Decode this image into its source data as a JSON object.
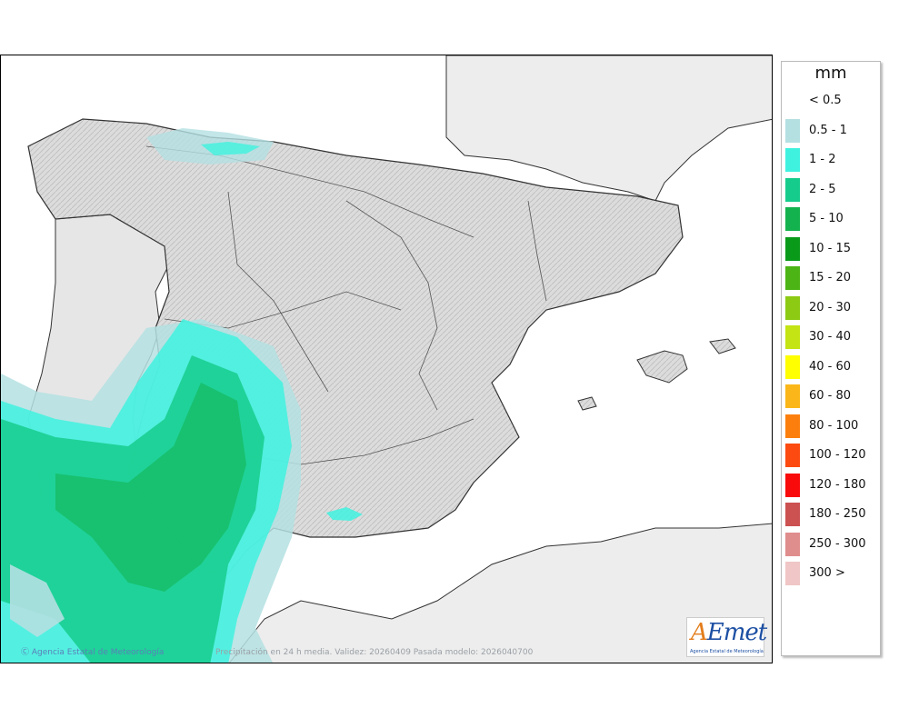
{
  "legend": {
    "unit": "mm",
    "items": [
      {
        "label": "< 0.5",
        "color": "#ffffff"
      },
      {
        "label": "0.5 - 1",
        "color": "#b4e0e2"
      },
      {
        "label": "1 - 2",
        "color": "#3ff2df"
      },
      {
        "label": "2 - 5",
        "color": "#16cc8c"
      },
      {
        "label": "5 - 10",
        "color": "#13b24e"
      },
      {
        "label": "10 - 15",
        "color": "#0a9a1a"
      },
      {
        "label": "15 - 20",
        "color": "#4cb414"
      },
      {
        "label": "20 - 30",
        "color": "#8cca14"
      },
      {
        "label": "30 - 40",
        "color": "#c4e414"
      },
      {
        "label": "40 - 60",
        "color": "#ffff00"
      },
      {
        "label": "60 - 80",
        "color": "#fbb719"
      },
      {
        "label": "80 - 100",
        "color": "#fc7f0e"
      },
      {
        "label": "100 - 120",
        "color": "#fc4a10"
      },
      {
        "label": "120 - 180",
        "color": "#f90b0b"
      },
      {
        "label": "180 - 250",
        "color": "#cc5151"
      },
      {
        "label": "250 - 300",
        "color": "#e08d8d"
      },
      {
        "label": "300 >",
        "color": "#f0c6c6"
      }
    ]
  },
  "credits": {
    "agency": "Ⓒ Agencia Estatal de Meteorología",
    "caption": "Precipitación en 24 h media. Validez: 20260409 Pasada modelo: 2026040700"
  },
  "logo": {
    "word": "AEmet",
    "subtitle": "Agencia Estatal de Meteorología"
  },
  "colors": {
    "sea": "#ffffff",
    "foreign_land": "#ededed",
    "spain_land": "#d9d9d9",
    "borders": "#555555"
  }
}
